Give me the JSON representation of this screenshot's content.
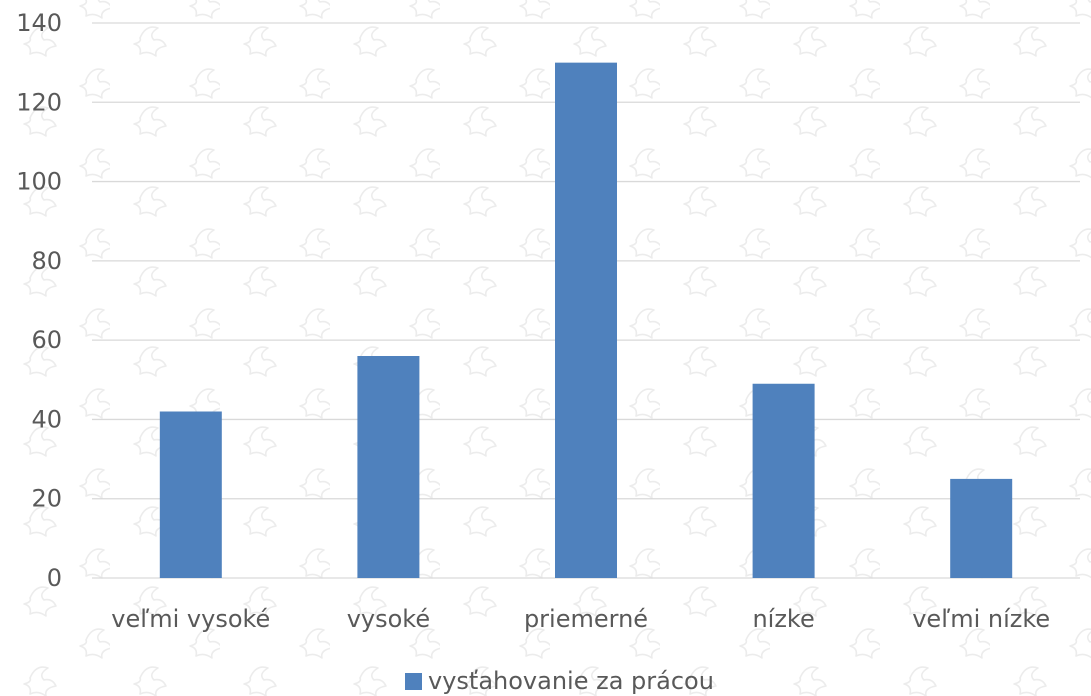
{
  "chart_data": {
    "type": "bar",
    "title": "",
    "xlabel": "",
    "ylabel": "",
    "categories": [
      "veľmi vysoké",
      "vysoké",
      "priemerné",
      "nízke",
      "veľmi nízke"
    ],
    "series": [
      {
        "name": "vysťahovanie za prácou",
        "values": [
          42,
          56,
          130,
          49,
          25
        ],
        "color": "#4f81bd"
      }
    ],
    "ylim": [
      0,
      140
    ],
    "yticks": [
      0,
      20,
      40,
      60,
      80,
      100,
      120,
      140
    ],
    "grid": true,
    "legend_position": "bottom"
  }
}
